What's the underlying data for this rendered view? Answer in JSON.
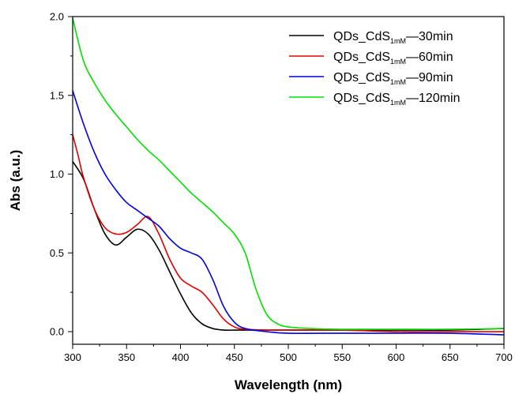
{
  "chart_data": {
    "type": "line",
    "xlabel": "Wavelength (nm)",
    "ylabel": "Abs (a.u.)",
    "xlim": [
      300,
      700
    ],
    "ylim": [
      -0.08,
      2.0
    ],
    "xticks": [
      300,
      350,
      400,
      450,
      500,
      550,
      600,
      650,
      700
    ],
    "yticks": [
      0.0,
      0.5,
      1.0,
      1.5,
      2.0
    ],
    "xtick_labels": [
      "300",
      "350",
      "400",
      "450",
      "500",
      "550",
      "600",
      "650",
      "700"
    ],
    "ytick_labels": [
      "0.0",
      "0.5",
      "1.0",
      "1.5",
      "2.0"
    ],
    "grid": false,
    "legend_position": "top-right",
    "series": [
      {
        "name": "QDs_CdS1mM—30min",
        "legend": {
          "main": "QDs_CdS",
          "sub": "1mM",
          "suffix": "—30min"
        },
        "color": "#000000",
        "x": [
          300,
          310,
          320,
          330,
          340,
          350,
          360,
          370,
          380,
          390,
          400,
          410,
          420,
          430,
          440,
          450,
          460,
          480,
          500,
          550,
          600,
          650,
          700
        ],
        "y": [
          1.08,
          0.97,
          0.78,
          0.62,
          0.55,
          0.6,
          0.65,
          0.62,
          0.52,
          0.38,
          0.24,
          0.12,
          0.05,
          0.02,
          0.01,
          0.01,
          0.01,
          0.01,
          0.01,
          0.01,
          0.01,
          0.01,
          0.02
        ]
      },
      {
        "name": "QDs_CdS1mM—60min",
        "legend": {
          "main": "QDs_CdS",
          "sub": "1mM",
          "suffix": "—60min"
        },
        "color": "#e00000",
        "x": [
          300,
          305,
          310,
          320,
          330,
          340,
          350,
          360,
          370,
          380,
          390,
          400,
          410,
          420,
          430,
          440,
          450,
          460,
          480,
          500,
          550,
          600,
          650,
          700
        ],
        "y": [
          1.25,
          1.12,
          0.98,
          0.78,
          0.66,
          0.62,
          0.63,
          0.68,
          0.73,
          0.62,
          0.46,
          0.34,
          0.29,
          0.25,
          0.17,
          0.08,
          0.03,
          0.015,
          0.01,
          0.01,
          0.01,
          0.0,
          0.0,
          0.0
        ]
      },
      {
        "name": "QDs_CdS1mM—90min",
        "legend": {
          "main": "QDs_CdS",
          "sub": "1mM",
          "suffix": "—90min"
        },
        "color": "#0000e0",
        "x": [
          300,
          310,
          320,
          330,
          340,
          350,
          360,
          370,
          380,
          390,
          400,
          410,
          420,
          430,
          440,
          450,
          460,
          480,
          500,
          550,
          600,
          650,
          700
        ],
        "y": [
          1.53,
          1.32,
          1.14,
          1.0,
          0.9,
          0.82,
          0.77,
          0.72,
          0.67,
          0.59,
          0.53,
          0.5,
          0.46,
          0.33,
          0.16,
          0.06,
          0.02,
          0.0,
          -0.01,
          -0.01,
          -0.01,
          -0.01,
          -0.02
        ]
      },
      {
        "name": "QDs_CdS1mM—120min",
        "legend": {
          "main": "QDs_CdS",
          "sub": "1mM",
          "suffix": "—120min"
        },
        "color": "#00e000",
        "x": [
          300,
          310,
          320,
          330,
          340,
          350,
          360,
          370,
          380,
          390,
          400,
          410,
          420,
          430,
          440,
          450,
          460,
          470,
          480,
          490,
          500,
          520,
          550,
          600,
          650,
          700
        ],
        "y": [
          1.99,
          1.72,
          1.58,
          1.47,
          1.38,
          1.3,
          1.22,
          1.15,
          1.09,
          1.02,
          0.95,
          0.88,
          0.82,
          0.76,
          0.69,
          0.62,
          0.5,
          0.27,
          0.11,
          0.05,
          0.03,
          0.02,
          0.015,
          0.015,
          0.015,
          0.02
        ]
      }
    ]
  }
}
